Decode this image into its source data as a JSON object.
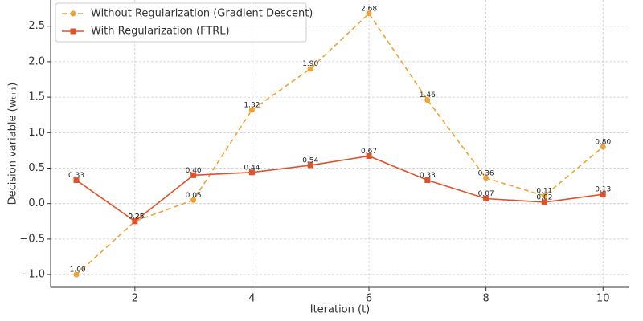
{
  "chart_data": {
    "type": "line",
    "xlabel": "Iteration (t)",
    "ylabel": "Decision variable (wₜ₊₁)",
    "x": [
      1,
      2,
      3,
      4,
      5,
      6,
      7,
      8,
      9,
      10
    ],
    "series": [
      {
        "name": "Without Regularization (Gradient Descent)",
        "color": "#f0a232",
        "dashed": true,
        "marker": "circle",
        "values": [
          -1.0,
          -0.25,
          0.05,
          1.32,
          1.9,
          2.68,
          1.46,
          0.36,
          0.11,
          0.8
        ],
        "value_labels": [
          "-1.00",
          "-0.25",
          "0.05",
          "1.32",
          "1.90",
          "2.68",
          "1.46",
          "0.36",
          "0.11",
          "0.80"
        ]
      },
      {
        "name": "With Regularization (FTRL)",
        "color": "#e0522a",
        "dashed": false,
        "marker": "square",
        "values": [
          0.33,
          -0.25,
          0.4,
          0.44,
          0.54,
          0.67,
          0.33,
          0.07,
          0.02,
          0.13
        ],
        "value_labels": [
          "0.33",
          "-0.25",
          "0.40",
          "0.44",
          "0.54",
          "0.67",
          "0.33",
          "0.07",
          "0.02",
          "0.13"
        ]
      }
    ],
    "xlim": [
      0.56,
      10.45
    ],
    "ylim": [
      -1.18,
      2.87
    ],
    "xticks": [
      2,
      4,
      6,
      8,
      10
    ],
    "yticks": [
      {
        "value": -1.0,
        "label": "−1.0"
      },
      {
        "value": -0.5,
        "label": "−0.5"
      },
      {
        "value": 0.0,
        "label": "0.0"
      },
      {
        "value": 0.5,
        "label": "0.5"
      },
      {
        "value": 1.0,
        "label": "1.0"
      },
      {
        "value": 1.5,
        "label": "1.5"
      },
      {
        "value": 2.0,
        "label": "2.0"
      },
      {
        "value": 2.5,
        "label": "2.5"
      }
    ],
    "grid": true,
    "legend": "upper-left"
  }
}
